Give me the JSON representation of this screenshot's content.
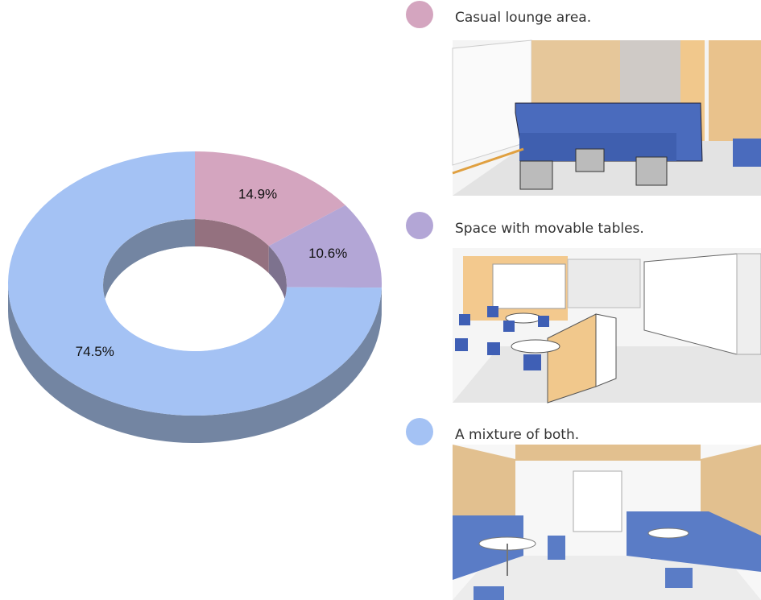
{
  "chart_data": {
    "type": "pie",
    "categories": [
      "Casual lounge area.",
      "Space with movable tables.",
      "A mixture of both."
    ],
    "values": [
      14.9,
      10.6,
      74.5
    ],
    "value_labels": [
      "14.9%",
      "10.6%",
      "74.5%"
    ],
    "colors": [
      "#d4a5bf",
      "#b3a6d6",
      "#a4c2f4"
    ]
  }
}
